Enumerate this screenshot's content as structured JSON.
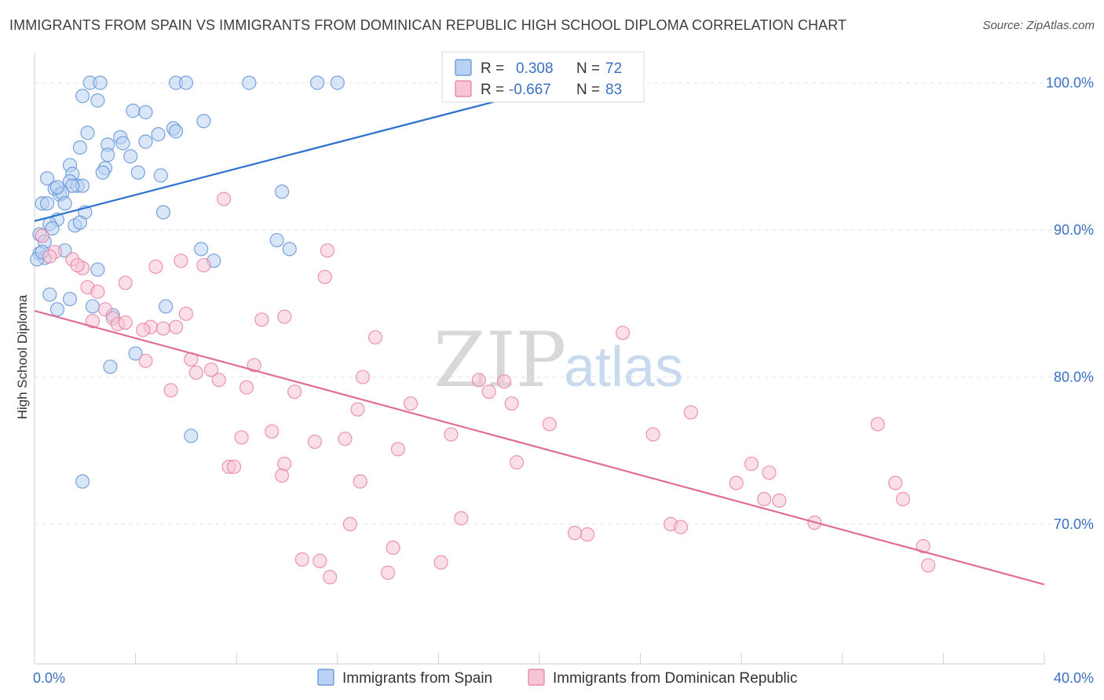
{
  "header": {
    "title": "IMMIGRANTS FROM SPAIN VS IMMIGRANTS FROM DOMINICAN REPUBLIC HIGH SCHOOL DIPLOMA CORRELATION CHART",
    "source": "Source: ZipAtlas.com"
  },
  "watermark": {
    "zip": "ZIP",
    "atlas": "atlas"
  },
  "legend_box": {
    "r_label": "R =",
    "n_label": "N =",
    "rows": [
      {
        "r": "0.308",
        "n": "72"
      },
      {
        "r": "-0.667",
        "n": "83"
      }
    ]
  },
  "colors": {
    "spain": "#5b8fd6",
    "spain_fill": "#b9d1f2",
    "dominican": "#e87aa0",
    "dominican_fill": "#f6c5d6",
    "tick_text": "#3a6fc4",
    "grid": "#e3e3e3"
  },
  "chart_data": {
    "type": "scatter",
    "title": "IMMIGRANTS FROM SPAIN VS IMMIGRANTS FROM DOMINICAN REPUBLIC HIGH SCHOOL DIPLOMA CORRELATION CHART",
    "xlabel": "",
    "ylabel": "High School Diploma",
    "xlim": [
      0,
      40
    ],
    "ylim": [
      60.5,
      102
    ],
    "x_ticks": [
      "0.0%",
      "40.0%"
    ],
    "y_ticks": [
      {
        "value": 70,
        "label": "70.0%"
      },
      {
        "value": 80,
        "label": "80.0%"
      },
      {
        "value": 90,
        "label": "90.0%"
      },
      {
        "value": 100,
        "label": "100.0%"
      }
    ],
    "grid": true,
    "legend_position": "bottom",
    "series": [
      {
        "name": "Immigrants from Spain",
        "r": 0.308,
        "n": 72,
        "trend": {
          "x": [
            0,
            22
          ],
          "y": [
            90.6,
            100.4
          ]
        },
        "points": [
          [
            2.2,
            100.0
          ],
          [
            2.6,
            100.0
          ],
          [
            5.6,
            100.0
          ],
          [
            6.0,
            100.0
          ],
          [
            8.5,
            100.0
          ],
          [
            11.2,
            100.0
          ],
          [
            12.0,
            100.0
          ],
          [
            21.9,
            100.0
          ],
          [
            1.9,
            99.1
          ],
          [
            2.5,
            98.8
          ],
          [
            3.9,
            98.1
          ],
          [
            4.4,
            98.0
          ],
          [
            6.7,
            97.4
          ],
          [
            5.5,
            96.9
          ],
          [
            5.6,
            96.7
          ],
          [
            2.1,
            96.6
          ],
          [
            3.4,
            96.3
          ],
          [
            3.5,
            95.9
          ],
          [
            2.9,
            95.8
          ],
          [
            4.4,
            96.0
          ],
          [
            1.8,
            95.6
          ],
          [
            2.9,
            95.1
          ],
          [
            1.4,
            94.4
          ],
          [
            2.8,
            94.2
          ],
          [
            4.1,
            93.9
          ],
          [
            5.0,
            93.7
          ],
          [
            1.5,
            93.8
          ],
          [
            0.5,
            93.5
          ],
          [
            1.4,
            93.3
          ],
          [
            1.7,
            93.0
          ],
          [
            1.9,
            93.0
          ],
          [
            0.8,
            92.8
          ],
          [
            1.5,
            93.0
          ],
          [
            9.8,
            92.6
          ],
          [
            1.0,
            92.4
          ],
          [
            1.1,
            92.5
          ],
          [
            0.3,
            91.8
          ],
          [
            0.5,
            91.8
          ],
          [
            1.2,
            91.8
          ],
          [
            2.0,
            91.2
          ],
          [
            5.1,
            91.2
          ],
          [
            0.9,
            90.7
          ],
          [
            1.6,
            90.3
          ],
          [
            0.6,
            90.4
          ],
          [
            0.7,
            90.1
          ],
          [
            0.2,
            89.7
          ],
          [
            9.6,
            89.3
          ],
          [
            0.4,
            89.2
          ],
          [
            6.6,
            88.7
          ],
          [
            10.1,
            88.7
          ],
          [
            1.2,
            88.6
          ],
          [
            0.2,
            88.4
          ],
          [
            0.4,
            88.1
          ],
          [
            7.1,
            87.9
          ],
          [
            2.5,
            87.3
          ],
          [
            0.6,
            85.6
          ],
          [
            1.4,
            85.3
          ],
          [
            0.9,
            84.6
          ],
          [
            2.3,
            84.8
          ],
          [
            5.2,
            84.8
          ],
          [
            3.1,
            84.2
          ],
          [
            4.0,
            81.6
          ],
          [
            3.0,
            80.7
          ],
          [
            6.2,
            76.0
          ],
          [
            1.9,
            72.9
          ],
          [
            0.1,
            88.0
          ],
          [
            0.3,
            88.5
          ],
          [
            1.8,
            90.5
          ],
          [
            2.7,
            93.9
          ],
          [
            3.8,
            95.0
          ],
          [
            4.9,
            96.5
          ],
          [
            0.9,
            92.9
          ]
        ]
      },
      {
        "name": "Immigrants from Dominican Republic",
        "r": -0.667,
        "n": 83,
        "trend": {
          "x": [
            0,
            40
          ],
          "y": [
            84.5,
            65.9
          ]
        },
        "points": [
          [
            0.3,
            89.6
          ],
          [
            0.8,
            88.5
          ],
          [
            1.5,
            88.0
          ],
          [
            1.9,
            87.4
          ],
          [
            1.7,
            87.6
          ],
          [
            0.6,
            88.2
          ],
          [
            7.5,
            92.1
          ],
          [
            11.6,
            88.6
          ],
          [
            11.5,
            86.8
          ],
          [
            5.8,
            87.9
          ],
          [
            6.7,
            87.6
          ],
          [
            4.8,
            87.5
          ],
          [
            3.6,
            86.4
          ],
          [
            2.1,
            86.1
          ],
          [
            2.5,
            85.8
          ],
          [
            2.8,
            84.6
          ],
          [
            3.1,
            84.0
          ],
          [
            3.3,
            83.6
          ],
          [
            2.3,
            83.8
          ],
          [
            4.6,
            83.4
          ],
          [
            4.3,
            83.2
          ],
          [
            5.1,
            83.3
          ],
          [
            5.6,
            83.4
          ],
          [
            6.0,
            84.3
          ],
          [
            9.0,
            83.9
          ],
          [
            9.9,
            84.1
          ],
          [
            13.5,
            82.7
          ],
          [
            6.2,
            81.2
          ],
          [
            4.4,
            81.1
          ],
          [
            7.0,
            80.5
          ],
          [
            6.4,
            80.3
          ],
          [
            8.7,
            80.8
          ],
          [
            13.0,
            80.0
          ],
          [
            7.3,
            79.8
          ],
          [
            5.4,
            79.1
          ],
          [
            8.4,
            79.3
          ],
          [
            10.3,
            79.0
          ],
          [
            17.6,
            79.8
          ],
          [
            18.6,
            79.7
          ],
          [
            18.0,
            79.0
          ],
          [
            23.3,
            83.0
          ],
          [
            12.8,
            77.8
          ],
          [
            14.9,
            78.2
          ],
          [
            18.9,
            78.2
          ],
          [
            20.4,
            76.8
          ],
          [
            16.5,
            76.1
          ],
          [
            8.2,
            75.9
          ],
          [
            9.4,
            76.3
          ],
          [
            12.3,
            75.8
          ],
          [
            11.1,
            75.6
          ],
          [
            14.4,
            75.1
          ],
          [
            24.5,
            76.1
          ],
          [
            26.0,
            77.6
          ],
          [
            33.4,
            76.8
          ],
          [
            9.9,
            74.1
          ],
          [
            7.7,
            73.9
          ],
          [
            7.9,
            73.9
          ],
          [
            19.1,
            74.2
          ],
          [
            9.8,
            73.3
          ],
          [
            12.9,
            72.9
          ],
          [
            27.8,
            72.8
          ],
          [
            28.4,
            74.1
          ],
          [
            29.1,
            73.5
          ],
          [
            28.9,
            71.7
          ],
          [
            29.5,
            71.6
          ],
          [
            34.1,
            72.8
          ],
          [
            34.4,
            71.7
          ],
          [
            16.9,
            70.4
          ],
          [
            12.5,
            70.0
          ],
          [
            25.2,
            70.0
          ],
          [
            25.6,
            69.8
          ],
          [
            30.9,
            70.1
          ],
          [
            21.4,
            69.4
          ],
          [
            21.9,
            69.3
          ],
          [
            14.2,
            68.4
          ],
          [
            10.6,
            67.6
          ],
          [
            11.3,
            67.5
          ],
          [
            16.1,
            67.4
          ],
          [
            14.0,
            66.7
          ],
          [
            11.7,
            66.4
          ],
          [
            35.2,
            68.5
          ],
          [
            35.4,
            67.2
          ],
          [
            3.6,
            83.7
          ]
        ]
      }
    ]
  },
  "bottom_legend": [
    {
      "label": "Immigrants from Spain"
    },
    {
      "label": "Immigrants from Dominican Republic"
    }
  ]
}
